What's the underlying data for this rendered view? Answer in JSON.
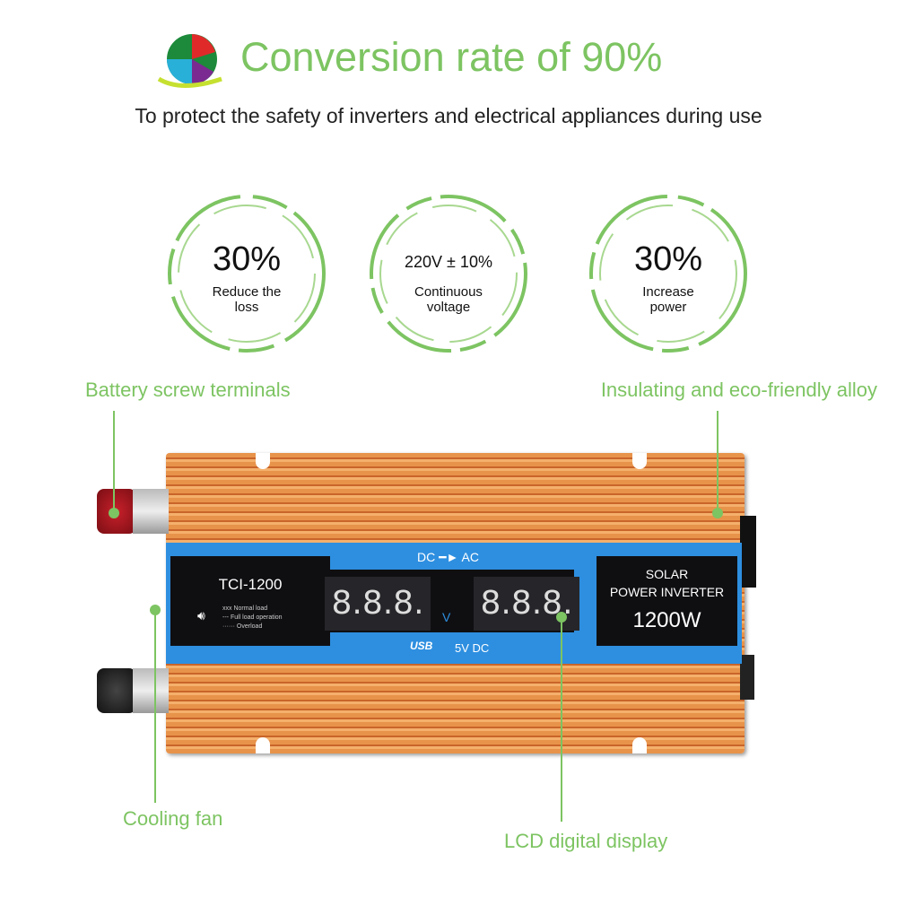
{
  "header": {
    "title": "Conversion rate of 90%",
    "subtitle": "To protect the safety of inverters and electrical appliances during use",
    "logo_icon": "soccer-ball-splash-logo"
  },
  "features": [
    {
      "value": "30%",
      "caption_1": "Reduce the",
      "caption_2": "loss"
    },
    {
      "value": "220V ± 10%",
      "caption_1": "Continuous",
      "caption_2": "voltage"
    },
    {
      "value": "30%",
      "caption_1": "Increase",
      "caption_2": "power"
    }
  ],
  "callouts": {
    "battery": "Battery screw terminals",
    "alloy": "Insulating and eco-friendly alloy",
    "fan": "Cooling fan",
    "lcd": "LCD digital display"
  },
  "device": {
    "model": "TCI-1200",
    "direction": "DC ━► AC",
    "legend": [
      "xxx Normal load",
      "--- Full load operation",
      "······ Overload"
    ],
    "display_left": "8.8.8.",
    "display_right": "8.8.8.",
    "unit": "V",
    "usb": "USB",
    "usb_output": "5V DC",
    "brand_1": "SOLAR",
    "brand_2": "POWER INVERTER",
    "power": "1200W"
  },
  "colors": {
    "accent": "#7dc462",
    "panel_blue": "#2e8fe0",
    "body_orange": "#e8934a"
  }
}
